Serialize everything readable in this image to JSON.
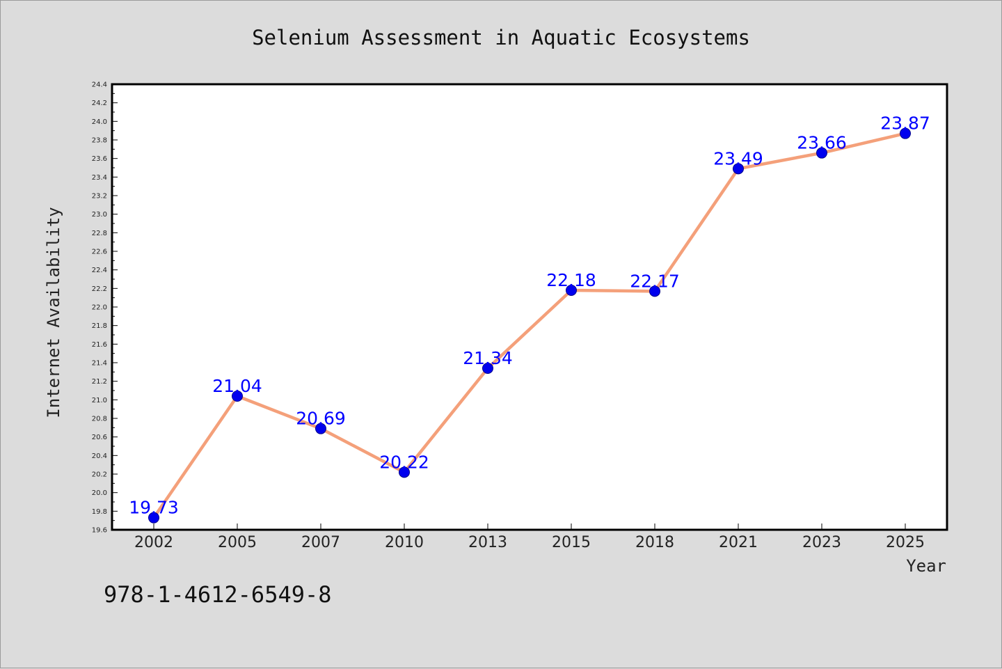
{
  "chart_data": {
    "type": "line",
    "title": "Selenium Assessment in Aquatic Ecosystems",
    "xlabel": "Year",
    "ylabel": "Internet Availability",
    "categories": [
      "2002",
      "2005",
      "2007",
      "2010",
      "2013",
      "2015",
      "2018",
      "2021",
      "2023",
      "2025"
    ],
    "values": [
      19.73,
      21.04,
      20.69,
      20.22,
      21.34,
      22.18,
      22.17,
      23.49,
      23.66,
      23.87
    ],
    "data_labels": [
      "19.73",
      "21.04",
      "20.69",
      "20.22",
      "21.34",
      "22.18",
      "22.17",
      "23.49",
      "23.66",
      "23.87"
    ],
    "ylim": [
      19.6,
      24.4
    ],
    "yticks": [
      "19.6",
      "19.8",
      "20.0",
      "20.2",
      "20.4",
      "20.6",
      "20.8",
      "21.0",
      "21.2",
      "21.4",
      "21.6",
      "21.8",
      "22.0",
      "22.2",
      "22.4",
      "22.6",
      "22.8",
      "23.0",
      "23.2",
      "23.4",
      "23.6",
      "23.8",
      "24.0",
      "24.2",
      "24.4"
    ],
    "grid": false,
    "legend": "none",
    "line_color": "#f4a07a",
    "marker_color": "#0000ee",
    "label_color": "#0000ff"
  },
  "footnote": "978-1-4612-6549-8"
}
